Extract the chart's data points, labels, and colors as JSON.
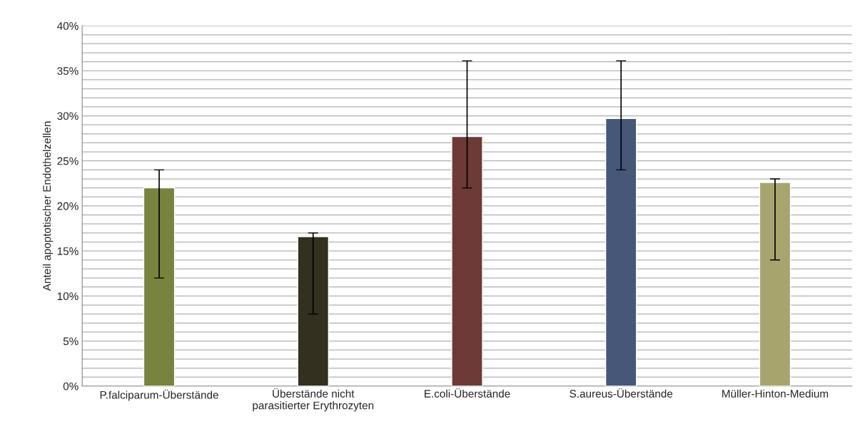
{
  "chart_data": {
    "type": "bar",
    "ylabel": "Anteil apoptotischer Endothelzellen",
    "categories": [
      "P.falciparum-Überstände",
      "Überstände nicht\nparasitierter Erythrozyten",
      "E.coli-Überstände",
      "S.aureus-Überstände",
      "Müller-Hinton-Medium"
    ],
    "values": [
      22,
      16.6,
      27.7,
      29.7,
      22.6
    ],
    "colors": [
      "#77833f",
      "#33301f",
      "#6e3a36",
      "#465878",
      "#a8a46e"
    ],
    "errors": [
      [
        12,
        24
      ],
      [
        8,
        17
      ],
      [
        22,
        36.1
      ],
      [
        24,
        36.1
      ],
      [
        14,
        23
      ]
    ],
    "ylim": [
      0,
      40
    ],
    "yticks": [
      {
        "value": 0,
        "label": "0%"
      },
      {
        "value": 1,
        "label": null
      },
      {
        "value": 2,
        "label": null
      },
      {
        "value": 3,
        "label": null
      },
      {
        "value": 4,
        "label": null
      },
      {
        "value": 5,
        "label": "5%"
      },
      {
        "value": 6,
        "label": null
      },
      {
        "value": 7,
        "label": null
      },
      {
        "value": 8,
        "label": null
      },
      {
        "value": 9,
        "label": null
      },
      {
        "value": 10,
        "label": "10%"
      },
      {
        "value": 11,
        "label": null
      },
      {
        "value": 12,
        "label": null
      },
      {
        "value": 13,
        "label": null
      },
      {
        "value": 14,
        "label": null
      },
      {
        "value": 15,
        "label": "15%"
      },
      {
        "value": 16,
        "label": null
      },
      {
        "value": 17,
        "label": null
      },
      {
        "value": 18,
        "label": null
      },
      {
        "value": 19,
        "label": null
      },
      {
        "value": 20,
        "label": "20%"
      },
      {
        "value": 21,
        "label": null
      },
      {
        "value": 22,
        "label": null
      },
      {
        "value": 23,
        "label": null
      },
      {
        "value": 24,
        "label": null
      },
      {
        "value": 25,
        "label": "25%"
      },
      {
        "value": 26,
        "label": null
      },
      {
        "value": 27,
        "label": null
      },
      {
        "value": 28,
        "label": null
      },
      {
        "value": 29,
        "label": null
      },
      {
        "value": 30,
        "label": "30%"
      },
      {
        "value": 31,
        "label": null
      },
      {
        "value": 32,
        "label": null
      },
      {
        "value": 33,
        "label": null
      },
      {
        "value": 34,
        "label": null
      },
      {
        "value": 35,
        "label": "35%"
      },
      {
        "value": 36,
        "label": null
      },
      {
        "value": 37,
        "label": null
      },
      {
        "value": 38,
        "label": null
      },
      {
        "value": 39,
        "label": null
      },
      {
        "value": 40,
        "label": "40%"
      }
    ],
    "grid": "y"
  }
}
